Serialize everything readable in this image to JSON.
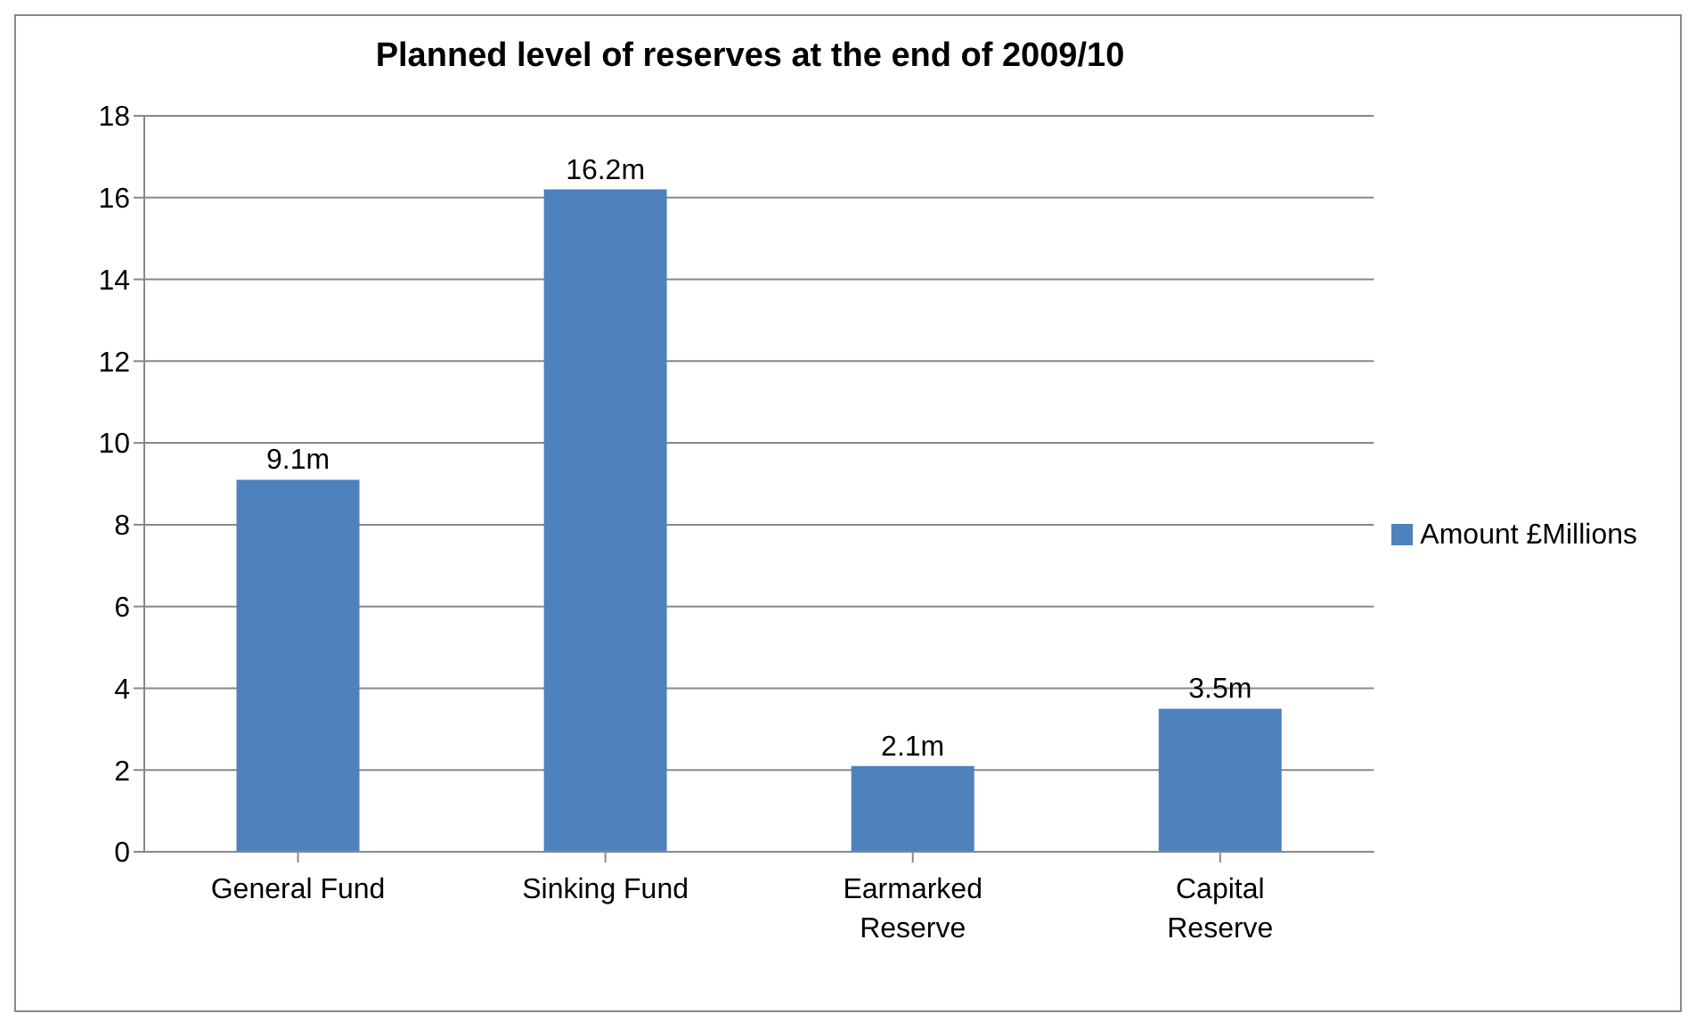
{
  "chart_data": {
    "type": "bar",
    "title": "Planned level of reserves at the end of 2009/10",
    "categories": [
      "General Fund",
      "Sinking Fund",
      "Earmarked Reserve",
      "Capital Reserve"
    ],
    "series": [
      {
        "name": "Amount £Millions",
        "color": "#4f81bd",
        "values": [
          9.1,
          16.2,
          2.1,
          3.5
        ],
        "value_labels": [
          "9.1m",
          "16.2m",
          "2.1m",
          "3.5m"
        ]
      }
    ],
    "ylim": [
      0,
      18
    ],
    "yticks": [
      0,
      2,
      4,
      6,
      8,
      10,
      12,
      14,
      16,
      18
    ],
    "grid": "y",
    "legend": "right"
  }
}
